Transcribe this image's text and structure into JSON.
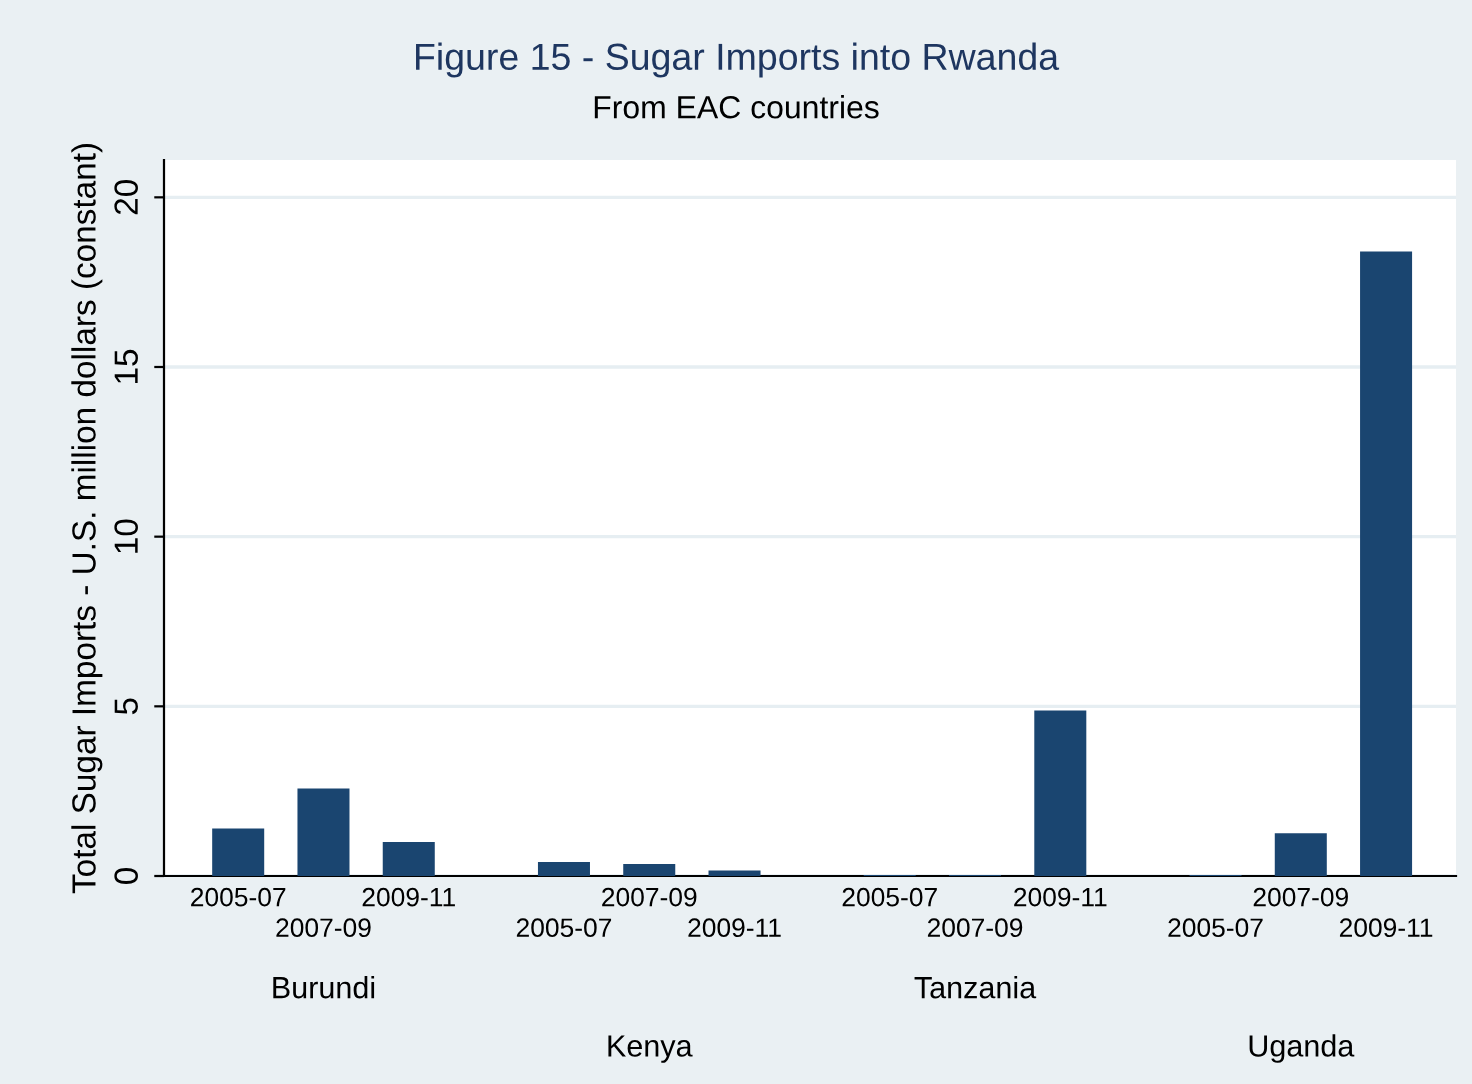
{
  "chart_data": {
    "type": "bar",
    "title": "Figure 15 - Sugar Imports into Rwanda",
    "subtitle": "From EAC countries",
    "ylabel": "Total Sugar Imports - U.S. million dollars (constant)",
    "categories": [
      "2005-07",
      "2007-09",
      "2009-11",
      "2005-07",
      "2007-09",
      "2009-11",
      "2005-07",
      "2007-09",
      "2009-11",
      "2005-07",
      "2007-09",
      "2009-11"
    ],
    "values": [
      1.4,
      2.58,
      1.0,
      0.41,
      0.35,
      0.16,
      0.03,
      0.03,
      4.88,
      0.03,
      1.26,
      18.4
    ],
    "color": "#1a4570",
    "annotations": [
      "Burundi",
      "Kenya",
      "Tanzania",
      "Uganda"
    ],
    "ylim": [
      0,
      21.1
    ],
    "yticks": [
      0,
      5,
      10,
      15,
      20
    ],
    "grid": "y",
    "legend": false
  }
}
